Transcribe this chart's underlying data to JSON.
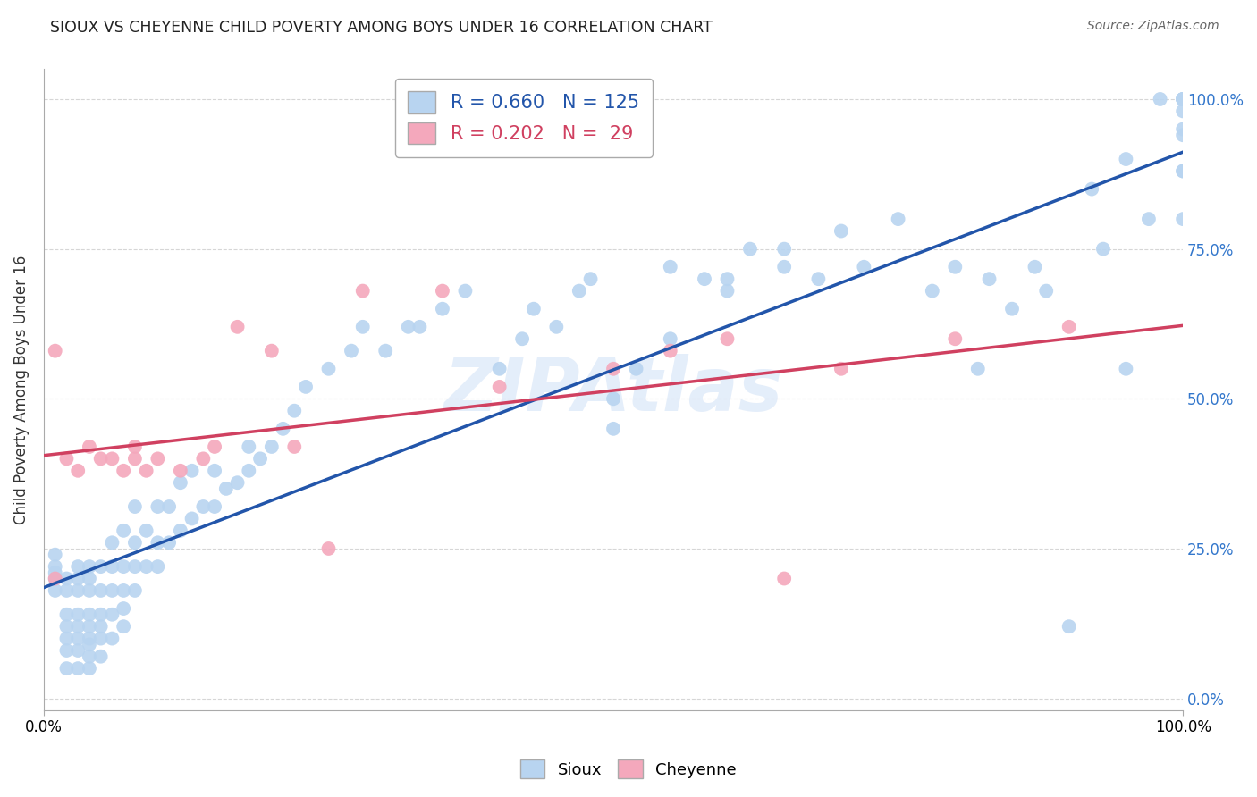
{
  "title": "SIOUX VS CHEYENNE CHILD POVERTY AMONG BOYS UNDER 16 CORRELATION CHART",
  "source": "Source: ZipAtlas.com",
  "ylabel": "Child Poverty Among Boys Under 16",
  "ytick_labels": [
    "0.0%",
    "25.0%",
    "50.0%",
    "75.0%",
    "100.0%"
  ],
  "ytick_vals": [
    0.0,
    0.25,
    0.5,
    0.75,
    1.0
  ],
  "watermark": "ZIPAtlas",
  "sioux_color": "#b8d4f0",
  "cheyenne_color": "#f4a8bc",
  "sioux_line_color": "#2255aa",
  "cheyenne_line_color": "#d04060",
  "background_color": "#ffffff",
  "grid_color": "#cccccc",
  "sioux_R": 0.66,
  "sioux_N": 125,
  "cheyenne_R": 0.202,
  "cheyenne_N": 29,
  "sioux_x": [
    0.01,
    0.01,
    0.01,
    0.01,
    0.01,
    0.02,
    0.02,
    0.02,
    0.02,
    0.02,
    0.02,
    0.02,
    0.03,
    0.03,
    0.03,
    0.03,
    0.03,
    0.03,
    0.03,
    0.03,
    0.04,
    0.04,
    0.04,
    0.04,
    0.04,
    0.04,
    0.04,
    0.04,
    0.04,
    0.05,
    0.05,
    0.05,
    0.05,
    0.05,
    0.05,
    0.06,
    0.06,
    0.06,
    0.06,
    0.06,
    0.07,
    0.07,
    0.07,
    0.07,
    0.07,
    0.08,
    0.08,
    0.08,
    0.08,
    0.09,
    0.09,
    0.1,
    0.1,
    0.1,
    0.11,
    0.11,
    0.12,
    0.12,
    0.13,
    0.13,
    0.14,
    0.15,
    0.15,
    0.16,
    0.17,
    0.18,
    0.18,
    0.19,
    0.2,
    0.21,
    0.22,
    0.23,
    0.25,
    0.27,
    0.28,
    0.3,
    0.32,
    0.33,
    0.35,
    0.37,
    0.4,
    0.42,
    0.43,
    0.45,
    0.47,
    0.48,
    0.5,
    0.5,
    0.52,
    0.55,
    0.55,
    0.58,
    0.6,
    0.6,
    0.62,
    0.65,
    0.65,
    0.68,
    0.7,
    0.72,
    0.75,
    0.78,
    0.8,
    0.82,
    0.83,
    0.85,
    0.87,
    0.88,
    0.9,
    0.92,
    0.93,
    0.95,
    0.95,
    0.97,
    0.98,
    1.0,
    1.0,
    1.0,
    1.0,
    1.0,
    1.0,
    1.0,
    1.0,
    1.0,
    1.0
  ],
  "sioux_y": [
    0.18,
    0.2,
    0.21,
    0.22,
    0.24,
    0.05,
    0.08,
    0.1,
    0.12,
    0.14,
    0.18,
    0.2,
    0.05,
    0.08,
    0.1,
    0.12,
    0.14,
    0.18,
    0.2,
    0.22,
    0.05,
    0.07,
    0.09,
    0.1,
    0.12,
    0.14,
    0.18,
    0.2,
    0.22,
    0.07,
    0.1,
    0.12,
    0.14,
    0.18,
    0.22,
    0.1,
    0.14,
    0.18,
    0.22,
    0.26,
    0.12,
    0.15,
    0.18,
    0.22,
    0.28,
    0.18,
    0.22,
    0.26,
    0.32,
    0.22,
    0.28,
    0.22,
    0.26,
    0.32,
    0.26,
    0.32,
    0.28,
    0.36,
    0.3,
    0.38,
    0.32,
    0.32,
    0.38,
    0.35,
    0.36,
    0.38,
    0.42,
    0.4,
    0.42,
    0.45,
    0.48,
    0.52,
    0.55,
    0.58,
    0.62,
    0.58,
    0.62,
    0.62,
    0.65,
    0.68,
    0.55,
    0.6,
    0.65,
    0.62,
    0.68,
    0.7,
    0.5,
    0.45,
    0.55,
    0.6,
    0.72,
    0.7,
    0.68,
    0.7,
    0.75,
    0.72,
    0.75,
    0.7,
    0.78,
    0.72,
    0.8,
    0.68,
    0.72,
    0.55,
    0.7,
    0.65,
    0.72,
    0.68,
    0.12,
    0.85,
    0.75,
    0.55,
    0.9,
    0.8,
    1.0,
    0.88,
    0.94,
    0.88,
    1.0,
    0.95,
    0.98,
    0.8,
    1.0,
    1.0,
    1.0
  ],
  "cheyenne_x": [
    0.01,
    0.01,
    0.02,
    0.03,
    0.04,
    0.05,
    0.06,
    0.07,
    0.08,
    0.08,
    0.09,
    0.1,
    0.12,
    0.14,
    0.15,
    0.17,
    0.2,
    0.22,
    0.25,
    0.28,
    0.35,
    0.4,
    0.5,
    0.55,
    0.6,
    0.65,
    0.7,
    0.8,
    0.9
  ],
  "cheyenne_y": [
    0.2,
    0.58,
    0.4,
    0.38,
    0.42,
    0.4,
    0.4,
    0.38,
    0.42,
    0.4,
    0.38,
    0.4,
    0.38,
    0.4,
    0.42,
    0.62,
    0.58,
    0.42,
    0.25,
    0.68,
    0.68,
    0.52,
    0.55,
    0.58,
    0.6,
    0.2,
    0.55,
    0.6,
    0.62
  ]
}
